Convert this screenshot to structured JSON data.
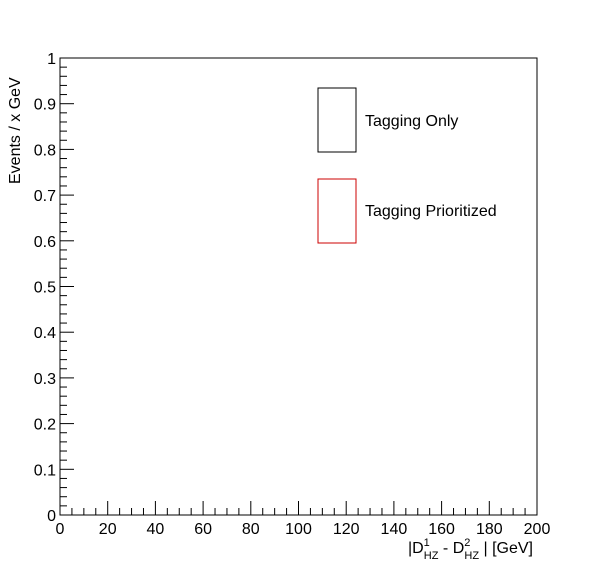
{
  "chart_data": {
    "type": "line",
    "title": "",
    "xlabel": {
      "open": "|D",
      "d1_sup": "1",
      "d1_sub": "HZ",
      "minus": " - D",
      "d2_sup": "2",
      "d2_sub": "HZ",
      "close": " | [GeV]"
    },
    "ylabel": "Events / x GeV",
    "xlim": [
      0,
      200
    ],
    "ylim": [
      0,
      1
    ],
    "x_ticks": [
      "0",
      "20",
      "40",
      "60",
      "80",
      "100",
      "120",
      "140",
      "160",
      "180",
      "200"
    ],
    "y_ticks": [
      "0",
      "0.1",
      "0.2",
      "0.3",
      "0.4",
      "0.5",
      "0.6",
      "0.7",
      "0.8",
      "0.9",
      "1"
    ],
    "grid": false,
    "legend_position": "top-right",
    "series": [
      {
        "name": "Tagging Only",
        "color": "#000000",
        "x": [],
        "y": []
      },
      {
        "name": "Tagging Prioritized",
        "color": "#cc0000",
        "x": [],
        "y": []
      }
    ]
  }
}
